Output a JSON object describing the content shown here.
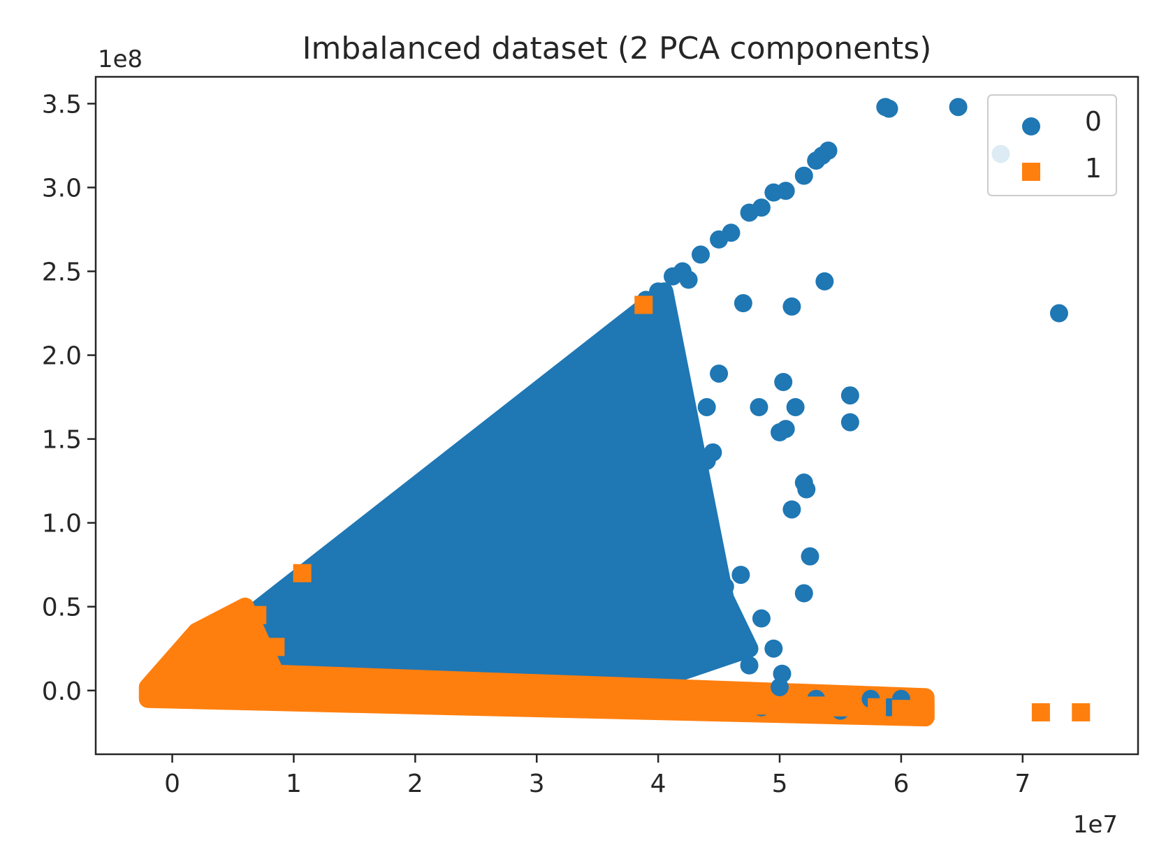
{
  "chart_data": {
    "type": "scatter",
    "title": "Imbalanced dataset (2 PCA components)",
    "xlabel": "",
    "ylabel": "",
    "x_offset_text": "1e7",
    "y_offset_text": "1e8",
    "xlim": [
      -0.63,
      7.95
    ],
    "ylim": [
      -0.38,
      3.66
    ],
    "x_ticks": [
      0,
      1,
      2,
      3,
      4,
      5,
      6,
      7
    ],
    "x_tick_labels": [
      "0",
      "1",
      "2",
      "3",
      "4",
      "5",
      "6",
      "7"
    ],
    "y_ticks": [
      0.0,
      0.5,
      1.0,
      1.5,
      2.0,
      2.5,
      3.0,
      3.5
    ],
    "y_tick_labels": [
      "0.0",
      "0.5",
      "1.0",
      "1.5",
      "2.0",
      "2.5",
      "3.0",
      "3.5"
    ],
    "grid": false,
    "legend_position": "top-right",
    "units_note": "x values in units of 1e7, y values in units of 1e8",
    "series": [
      {
        "name": "0",
        "marker": "circle",
        "color": "#1f77b4",
        "dense_region": [
          [
            -0.15,
            0.0
          ],
          [
            4.05,
            2.38
          ],
          [
            4.55,
            0.55
          ],
          [
            4.75,
            0.25
          ],
          [
            3.4,
            -0.08
          ],
          [
            -0.15,
            -0.05
          ]
        ],
        "points": [
          [
            5.87,
            3.48
          ],
          [
            5.9,
            3.47
          ],
          [
            6.47,
            3.48
          ],
          [
            6.82,
            3.2
          ],
          [
            5.4,
            3.22
          ],
          [
            5.35,
            3.19
          ],
          [
            5.3,
            3.16
          ],
          [
            5.2,
            3.07
          ],
          [
            5.05,
            2.98
          ],
          [
            4.95,
            2.97
          ],
          [
            4.85,
            2.88
          ],
          [
            4.75,
            2.85
          ],
          [
            4.6,
            2.73
          ],
          [
            4.5,
            2.69
          ],
          [
            4.35,
            2.6
          ],
          [
            4.2,
            2.5
          ],
          [
            4.25,
            2.45
          ],
          [
            4.12,
            2.47
          ],
          [
            4.0,
            2.38
          ],
          [
            3.9,
            2.33
          ],
          [
            5.37,
            2.44
          ],
          [
            4.7,
            2.31
          ],
          [
            5.1,
            2.29
          ],
          [
            7.3,
            2.25
          ],
          [
            3.8,
            1.89
          ],
          [
            4.15,
            1.9
          ],
          [
            4.12,
            1.85
          ],
          [
            4.5,
            1.89
          ],
          [
            5.03,
            1.84
          ],
          [
            5.58,
            1.76
          ],
          [
            4.1,
            1.7
          ],
          [
            4.4,
            1.69
          ],
          [
            4.83,
            1.69
          ],
          [
            5.13,
            1.69
          ],
          [
            5.58,
            1.6
          ],
          [
            3.9,
            1.6
          ],
          [
            3.82,
            1.55
          ],
          [
            5.0,
            1.54
          ],
          [
            5.05,
            1.56
          ],
          [
            4.45,
            1.42
          ],
          [
            4.4,
            1.37
          ],
          [
            3.75,
            1.38
          ],
          [
            5.2,
            1.24
          ],
          [
            5.22,
            1.2
          ],
          [
            4.15,
            1.1
          ],
          [
            5.1,
            1.08
          ],
          [
            3.3,
            1.23
          ],
          [
            3.48,
            1.2
          ],
          [
            3.7,
            0.85
          ],
          [
            3.95,
            0.8
          ],
          [
            4.15,
            0.87
          ],
          [
            4.3,
            0.8
          ],
          [
            4.42,
            0.76
          ],
          [
            4.55,
            0.62
          ],
          [
            4.68,
            0.69
          ],
          [
            5.25,
            0.8
          ],
          [
            5.2,
            0.58
          ],
          [
            4.85,
            0.43
          ],
          [
            4.6,
            0.28
          ],
          [
            4.95,
            0.25
          ],
          [
            5.02,
            0.1
          ],
          [
            5.0,
            0.02
          ],
          [
            4.75,
            0.15
          ],
          [
            3.1,
            1.46
          ],
          [
            3.2,
            1.75
          ],
          [
            3.45,
            1.79
          ],
          [
            3.25,
            0.95
          ],
          [
            3.5,
            0.9
          ],
          [
            3.7,
            0.57
          ],
          [
            5.3,
            -0.05
          ],
          [
            5.75,
            -0.05
          ],
          [
            6.0,
            -0.05
          ],
          [
            5.9,
            -0.1
          ],
          [
            5.5,
            -0.12
          ],
          [
            4.85,
            -0.1
          ]
        ]
      },
      {
        "name": "1",
        "marker": "square",
        "color": "#ff7f0e",
        "dense_region": [
          [
            -0.2,
            0.02
          ],
          [
            0.2,
            0.35
          ],
          [
            0.6,
            0.5
          ],
          [
            0.85,
            0.1
          ],
          [
            6.2,
            -0.04
          ],
          [
            6.2,
            -0.16
          ],
          [
            -0.2,
            -0.05
          ]
        ],
        "points": [
          [
            3.88,
            2.3
          ],
          [
            1.07,
            0.7
          ],
          [
            0.7,
            0.45
          ],
          [
            0.52,
            0.35
          ],
          [
            0.3,
            0.3
          ],
          [
            0.85,
            0.26
          ],
          [
            0.45,
            0.2
          ],
          [
            0.2,
            0.18
          ],
          [
            0.6,
            0.1
          ],
          [
            0.1,
            0.08
          ],
          [
            0.0,
            0.05
          ],
          [
            -0.15,
            0.02
          ],
          [
            1.5,
            0.02
          ],
          [
            2.5,
            0.0
          ],
          [
            2.9,
            -0.05
          ],
          [
            3.05,
            -0.06
          ],
          [
            3.25,
            -0.06
          ],
          [
            3.5,
            -0.08
          ],
          [
            3.9,
            -0.08
          ],
          [
            4.1,
            -0.08
          ],
          [
            4.4,
            -0.07
          ],
          [
            4.7,
            -0.08
          ],
          [
            4.85,
            -0.09
          ],
          [
            5.1,
            -0.09
          ],
          [
            5.3,
            -0.09
          ],
          [
            5.5,
            -0.1
          ],
          [
            5.8,
            -0.1
          ],
          [
            6.0,
            -0.11
          ],
          [
            6.1,
            -0.12
          ],
          [
            6.2,
            -0.12
          ],
          [
            7.15,
            -0.13
          ],
          [
            7.48,
            -0.13
          ]
        ]
      }
    ]
  }
}
